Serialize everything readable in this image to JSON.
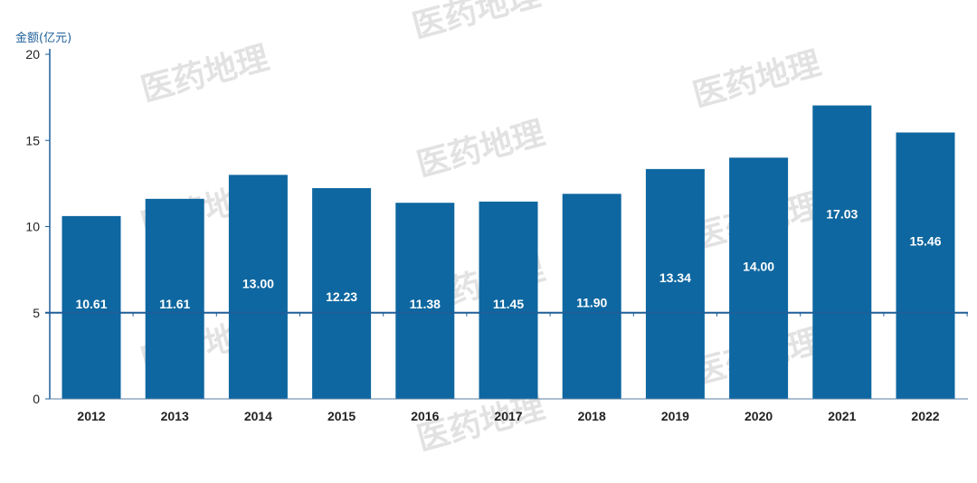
{
  "chart_data": {
    "type": "bar",
    "ylabel": "金额(亿元)",
    "categories": [
      "2012",
      "2013",
      "2014",
      "2015",
      "2016",
      "2017",
      "2018",
      "2019",
      "2020",
      "2021",
      "2022"
    ],
    "values": [
      10.61,
      11.61,
      13.0,
      12.23,
      11.38,
      11.45,
      11.9,
      13.34,
      14.0,
      17.03,
      15.46
    ],
    "value_labels": [
      "10.61",
      "11.61",
      "13.00",
      "12.23",
      "11.38",
      "11.45",
      "11.90",
      "13.34",
      "14.00",
      "17.03",
      "15.46"
    ],
    "yticks": [
      "0",
      "5",
      "10",
      "15",
      "20"
    ],
    "ylim": [
      0,
      20
    ],
    "grid": false,
    "reference_line": 5,
    "colors": {
      "bar": "#0e67a0",
      "axis": "#1f5f99",
      "label": "#ffffff"
    }
  },
  "watermark": "医药地理"
}
